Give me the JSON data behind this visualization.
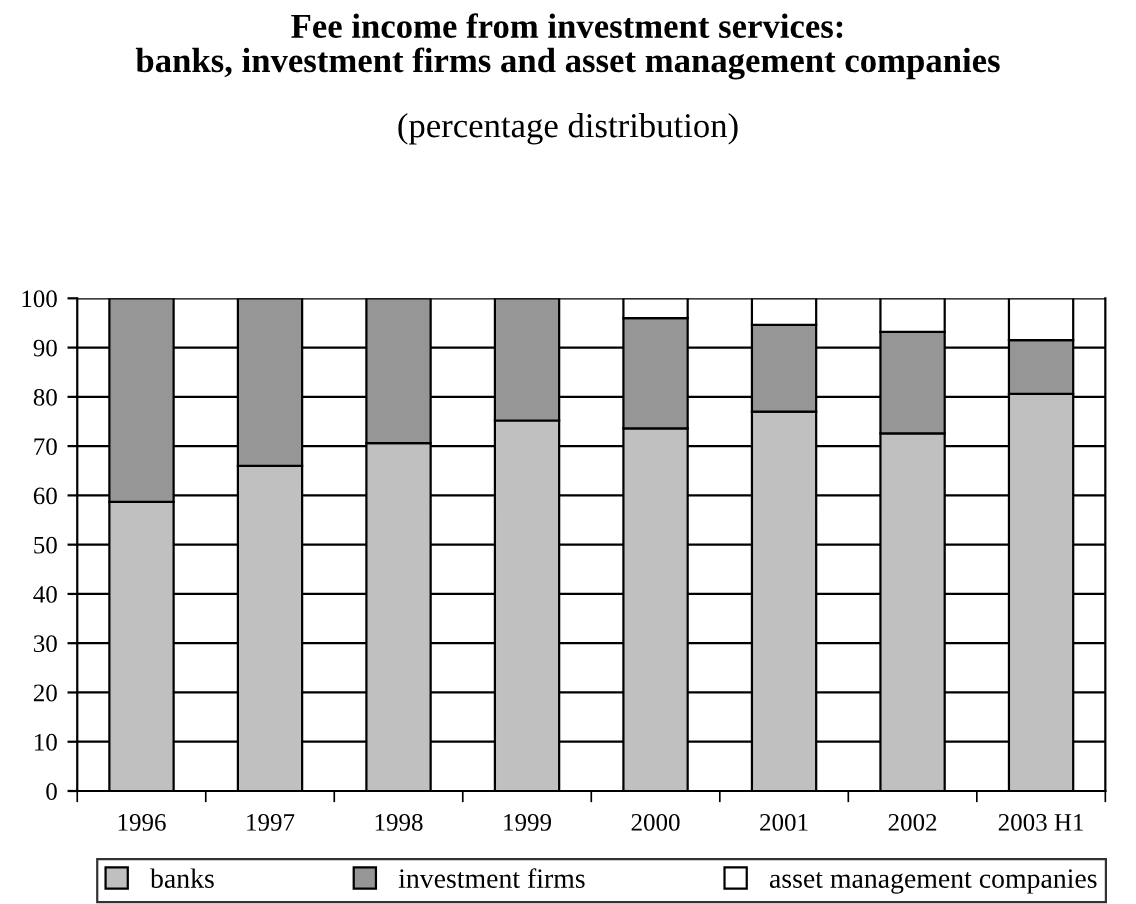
{
  "chart_data": {
    "type": "bar",
    "stacked": true,
    "title": "Fee income from investment services:\nbanks, investment firms and asset management companies",
    "subtitle": "(percentage distribution)",
    "categories": [
      "1996",
      "1997",
      "1998",
      "1999",
      "2000",
      "2001",
      "2002",
      "2003 H1"
    ],
    "series": [
      {
        "name": "banks",
        "color": "#c0c0c0",
        "values": [
          58.7,
          66,
          70.6,
          75.2,
          73.6,
          77,
          72.6,
          80.6
        ]
      },
      {
        "name": "investment firms",
        "color": "#969696",
        "values": [
          41.3,
          34,
          29.4,
          24.8,
          22.4,
          17.6,
          20.6,
          10.9
        ]
      },
      {
        "name": "asset management companies",
        "color": "#ffffff",
        "values": [
          0,
          0,
          0,
          0,
          4,
          5.4,
          6.8,
          8.5
        ]
      }
    ],
    "ylim": [
      0,
      100
    ],
    "yticks": [
      0,
      10,
      20,
      30,
      40,
      50,
      60,
      70,
      80,
      90,
      100
    ],
    "grid": "y",
    "legend": "bottom"
  }
}
